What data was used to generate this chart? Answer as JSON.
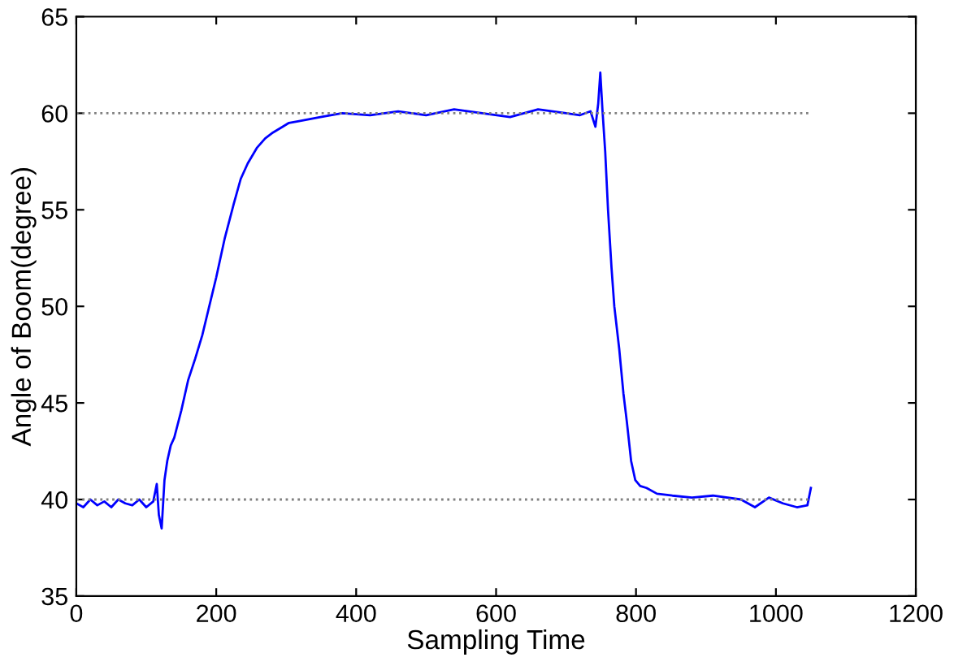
{
  "chart_data": {
    "type": "line",
    "xlabel": "Sampling Time",
    "ylabel": "Angle of Boom(degree)",
    "xlim": [
      0,
      1200
    ],
    "ylim": [
      35,
      65
    ],
    "xticks": [
      0,
      200,
      400,
      600,
      800,
      1000,
      1200
    ],
    "yticks": [
      35,
      40,
      45,
      50,
      55,
      60,
      65
    ],
    "grid": false,
    "legend": false,
    "marker": "none",
    "line_style": "solid",
    "series": [
      {
        "color": "#0000ff",
        "x": [
          0,
          10,
          20,
          30,
          40,
          50,
          60,
          70,
          80,
          90,
          100,
          110,
          115,
          118,
          122,
          126,
          130,
          135,
          140,
          150,
          160,
          170,
          180,
          190,
          200,
          212,
          225,
          235,
          245,
          258,
          270,
          281,
          295,
          304,
          320,
          349,
          380,
          420,
          460,
          500,
          540,
          580,
          620,
          660,
          700,
          720,
          735,
          742,
          746,
          749,
          752,
          756,
          760,
          765,
          769,
          776,
          782,
          787,
          793,
          799,
          806,
          815,
          830,
          852,
          880,
          910,
          950,
          970,
          990,
          1010,
          1030,
          1045,
          1050
        ],
        "values": [
          39.8,
          39.6,
          40.0,
          39.7,
          39.9,
          39.6,
          40.0,
          39.8,
          39.7,
          40.0,
          39.6,
          39.9,
          40.8,
          39.2,
          38.5,
          41.0,
          42.0,
          42.8,
          43.2,
          44.6,
          46.2,
          47.3,
          48.5,
          50.0,
          51.5,
          53.5,
          55.3,
          56.6,
          57.4,
          58.2,
          58.7,
          59.0,
          59.3,
          59.5,
          59.6,
          59.8,
          60.0,
          59.9,
          60.1,
          59.9,
          60.2,
          60.0,
          59.8,
          60.2,
          60.0,
          59.9,
          60.1,
          59.3,
          60.5,
          62.1,
          60.2,
          58.0,
          55.0,
          52.0,
          50.0,
          47.8,
          45.5,
          44.0,
          42.0,
          41.0,
          40.7,
          40.6,
          40.3,
          40.2,
          40.1,
          40.2,
          40.0,
          39.6,
          40.1,
          39.8,
          39.6,
          39.7,
          40.6
        ]
      },
      {
        "color": "#808080",
        "x": [
          0,
          1050
        ],
        "values": [
          60,
          60
        ],
        "line_style": "dotted"
      },
      {
        "color": "#808080",
        "x": [
          0,
          1050
        ],
        "values": [
          40,
          40
        ],
        "line_style": "dotted"
      }
    ]
  }
}
